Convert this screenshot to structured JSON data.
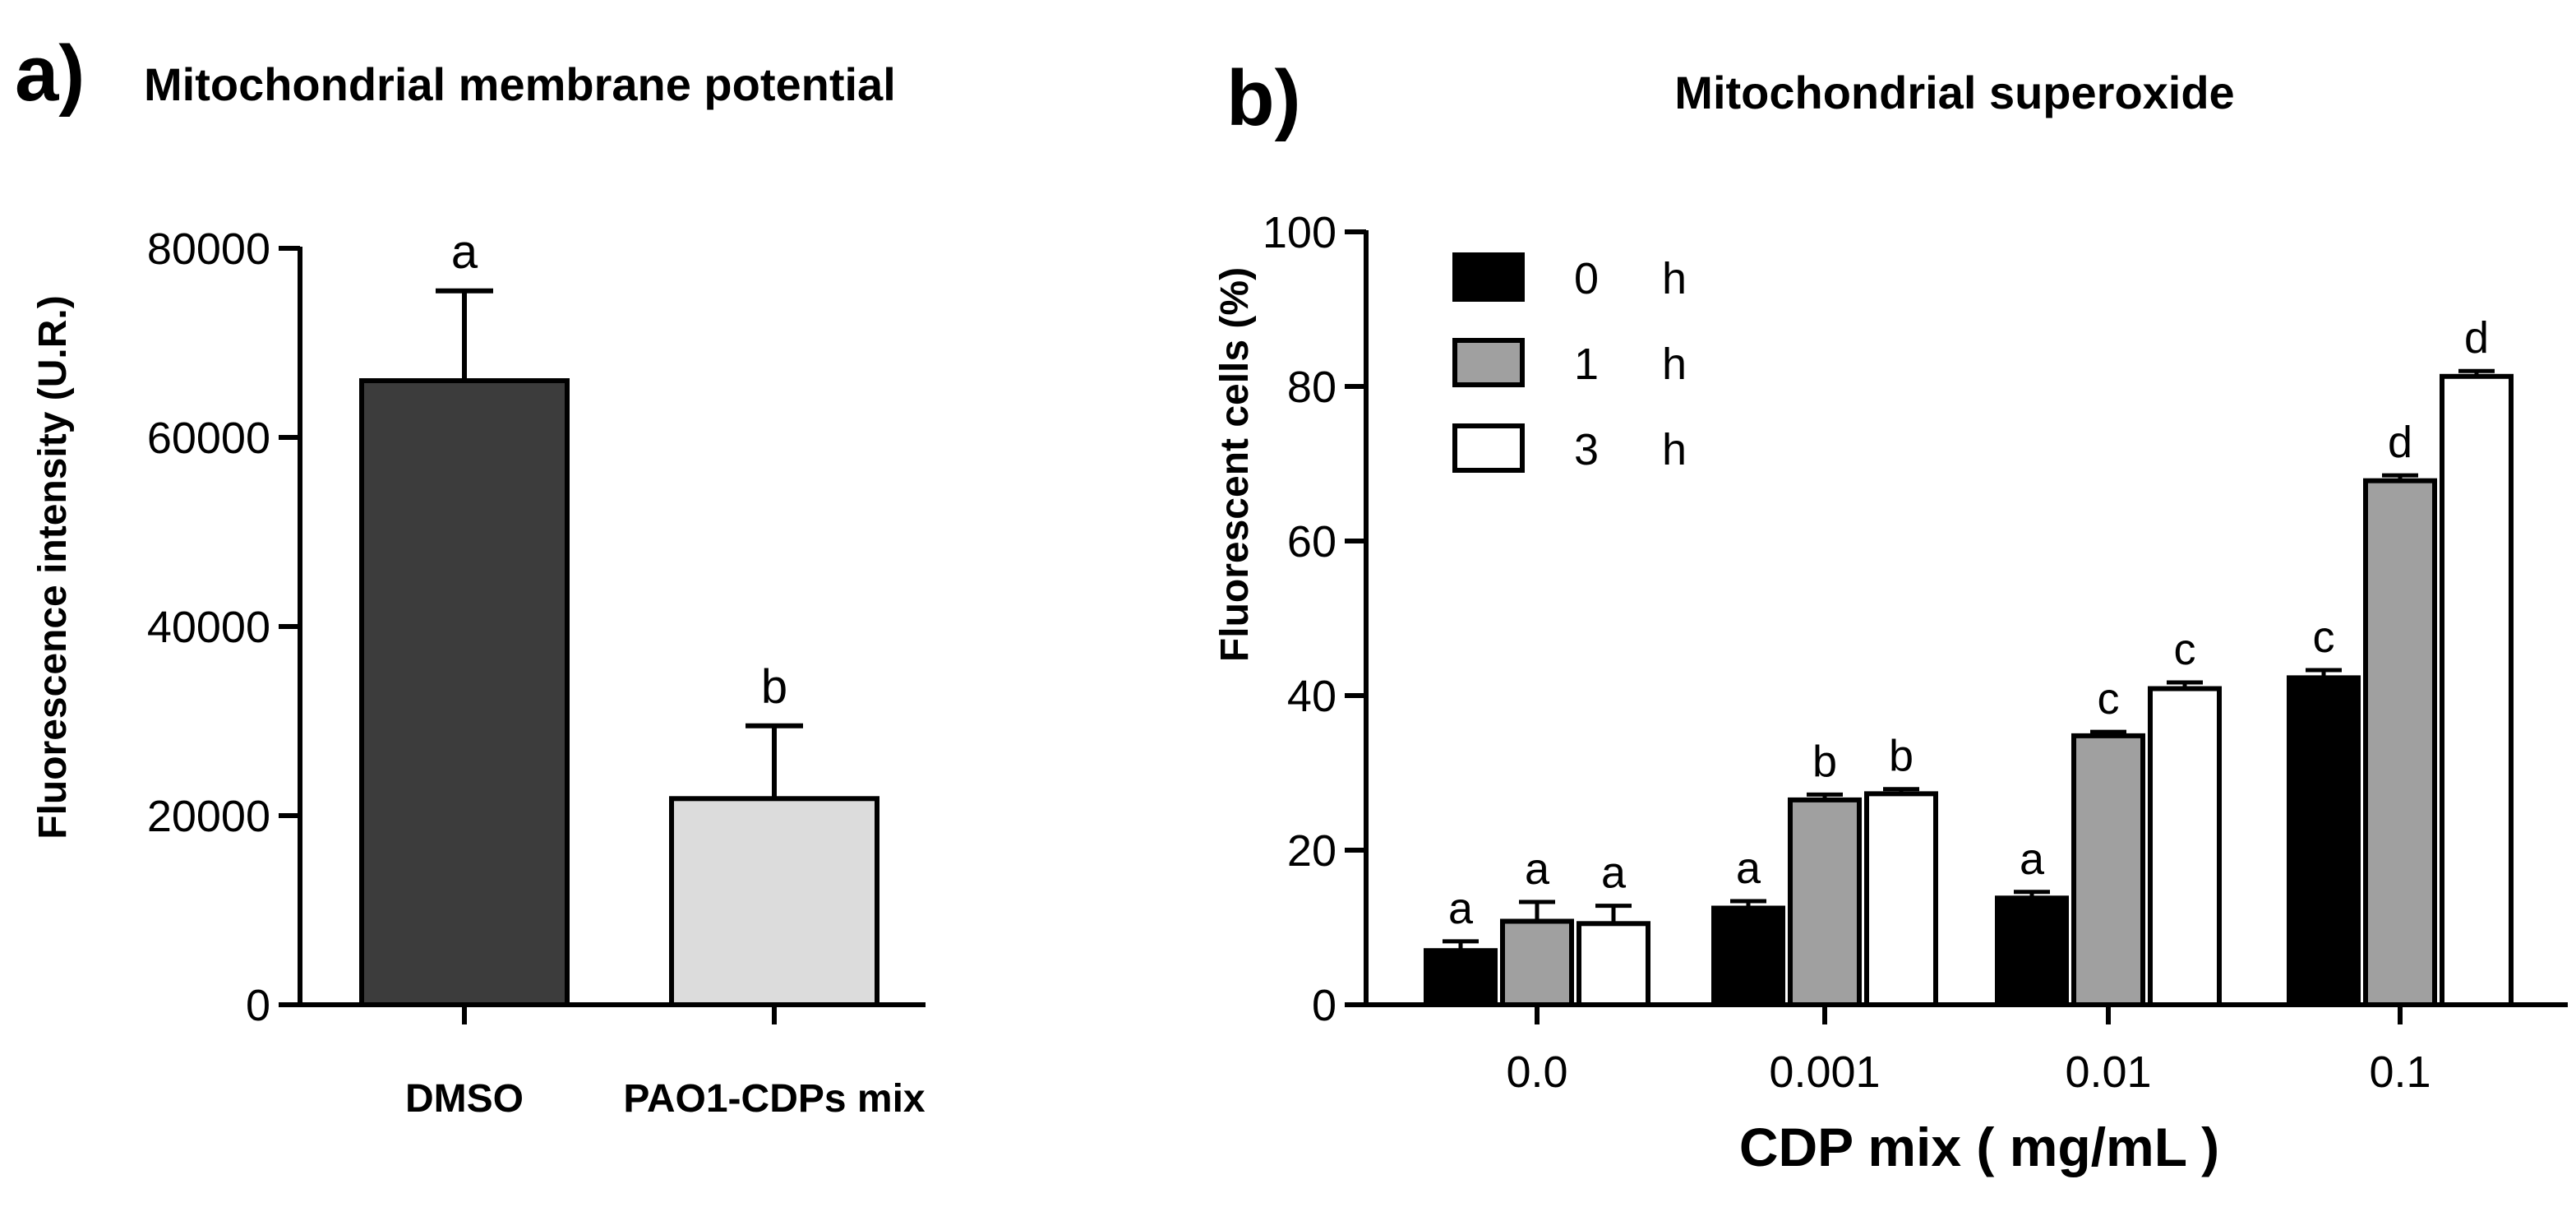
{
  "chart_data": [
    {
      "panel": "a)",
      "type": "bar",
      "title": "Mitochondrial membrane potential",
      "ylabel": "Fluorescence intensity (U.R.)",
      "xlabel": "",
      "ylim": [
        0,
        80000
      ],
      "yticks": [
        "0",
        "20000",
        "40000",
        "60000",
        "80000"
      ],
      "categories": [
        "DMSO",
        "PAO1-CDPs mix"
      ],
      "values": [
        66000,
        21800
      ],
      "errors": [
        9500,
        7700
      ],
      "sig_letters": [
        "a",
        "b"
      ],
      "colors": [
        "#3c3c3c",
        "#dcdcdc"
      ]
    },
    {
      "panel": "b)",
      "type": "bar",
      "title": "Mitochondrial superoxide",
      "ylabel": "Fluorescent cells (%)",
      "xlabel": "CDP mix ( mg/mL )",
      "ylim": [
        0,
        100
      ],
      "yticks": [
        "0",
        "20",
        "40",
        "60",
        "80",
        "100"
      ],
      "categories": [
        "0.0",
        "0.001",
        "0.01",
        "0.1"
      ],
      "legend_position": "top-left",
      "series": [
        {
          "name": "0",
          "unit": "h",
          "color": "#000000",
          "values": [
            7,
            12.5,
            13.8,
            42.3
          ],
          "errors": [
            1.2,
            0.9,
            0.8,
            1.0
          ],
          "sig_letters": [
            "a",
            "a",
            "a",
            "c"
          ]
        },
        {
          "name": "1",
          "unit": "h",
          "color": "#a0a0a0",
          "values": [
            10.8,
            26.5,
            34.8,
            67.8
          ],
          "errors": [
            2.5,
            0.7,
            0.5,
            0.7
          ],
          "sig_letters": [
            "a",
            "b",
            "c",
            "d"
          ]
        },
        {
          "name": "3",
          "unit": "h",
          "color": "#ffffff",
          "values": [
            10.5,
            27.3,
            40.9,
            81.3
          ],
          "errors": [
            2.3,
            0.6,
            0.8,
            0.7
          ],
          "sig_letters": [
            "a",
            "b",
            "c",
            "d"
          ]
        }
      ]
    }
  ]
}
